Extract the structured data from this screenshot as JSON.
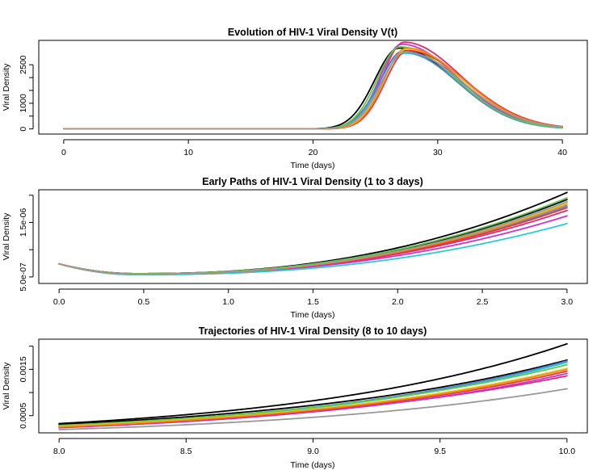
{
  "chart_data": [
    {
      "type": "line",
      "title": "Evolution of HIV-1 Viral Density V(t)",
      "xlabel": "Time (days)",
      "ylabel": "Viral Density",
      "xlim": [
        -2,
        42
      ],
      "ylim": [
        -200,
        3450
      ],
      "x_ticks": [
        0,
        10,
        20,
        30,
        40
      ],
      "x_tick_labels": [
        "0",
        "10",
        "20",
        "30",
        "40"
      ],
      "y_ticks": [
        0,
        1000,
        2500
      ],
      "y_tick_labels": [
        "0",
        "1000",
        "2500"
      ],
      "y_ticks_minor": [
        500,
        1500,
        2000
      ],
      "grid": false,
      "model": "pulse",
      "series": [
        {
          "color": "#000000",
          "values": {
            "peak_t": 27.3,
            "peak_v": 3050,
            "rise": 1.95,
            "decay": 4.6
          }
        },
        {
          "color": "#000000",
          "values": {
            "peak_t": 26.9,
            "peak_v": 3150,
            "rise": 1.95,
            "decay": 4.5
          }
        },
        {
          "color": "#dd2d6f",
          "values": {
            "peak_t": 27.3,
            "peak_v": 3380,
            "rise": 1.75,
            "decay": 4.6
          }
        },
        {
          "color": "#cc33cc",
          "values": {
            "peak_t": 27.1,
            "peak_v": 3300,
            "rise": 1.75,
            "decay": 4.5
          }
        },
        {
          "color": "#2bcbd6",
          "values": {
            "peak_t": 27.4,
            "peak_v": 2950,
            "rise": 1.95,
            "decay": 4.3
          }
        },
        {
          "color": "#4f87d8",
          "values": {
            "peak_t": 27.2,
            "peak_v": 3000,
            "rise": 1.9,
            "decay": 4.4
          }
        },
        {
          "color": "#61c748",
          "values": {
            "peak_t": 27.0,
            "peak_v": 3200,
            "rise": 1.85,
            "decay": 4.5
          }
        },
        {
          "color": "#e8d024",
          "values": {
            "peak_t": 27.5,
            "peak_v": 3100,
            "rise": 1.85,
            "decay": 4.6
          }
        },
        {
          "color": "#e33b3b",
          "values": {
            "peak_t": 27.6,
            "peak_v": 3050,
            "rise": 1.8,
            "decay": 4.7
          }
        },
        {
          "color": "#f28b1a",
          "values": {
            "peak_t": 27.5,
            "peak_v": 3150,
            "rise": 1.8,
            "decay": 4.6
          }
        },
        {
          "color": "#999999",
          "values": {
            "peak_t": 27.4,
            "peak_v": 3000,
            "rise": 1.9,
            "decay": 4.6
          }
        }
      ]
    },
    {
      "type": "line",
      "title": "Early Paths of HIV-1 Viral Density (1 to 3 days)",
      "xlabel": "Time (days)",
      "ylabel": "Viral Density",
      "xlim": [
        -0.12,
        3.12
      ],
      "ylim": [
        3.8e-07,
        2.1e-06
      ],
      "x_ticks": [
        0,
        0.5,
        1,
        1.5,
        2,
        2.5,
        3
      ],
      "x_tick_labels": [
        "0.0",
        "0.5",
        "1.0",
        "1.5",
        "2.0",
        "2.5",
        "3.0"
      ],
      "y_ticks": [
        5e-07,
        1.5e-06
      ],
      "y_tick_labels": [
        "5.0e-07",
        "1.5e-06"
      ],
      "y_ticks_minor": [
        1e-06,
        2e-06
      ],
      "grid": false,
      "model": "dip",
      "series": [
        {
          "color": "#000000",
          "values": {
            "start": 7.4e-07,
            "low": 5.6e-07,
            "low_t": 0.45,
            "end": 2.05e-06
          }
        },
        {
          "color": "#000000",
          "values": {
            "start": 7.4e-07,
            "low": 5.6e-07,
            "low_t": 0.45,
            "end": 1.92e-06
          }
        },
        {
          "color": "#dd2d6f",
          "values": {
            "start": 7.4e-07,
            "low": 5.5e-07,
            "low_t": 0.45,
            "end": 1.72e-06
          }
        },
        {
          "color": "#cc33cc",
          "values": {
            "start": 7.4e-07,
            "low": 5.5e-07,
            "low_t": 0.45,
            "end": 1.62e-06
          }
        },
        {
          "color": "#2bcbd6",
          "values": {
            "start": 7.4e-07,
            "low": 5.4e-07,
            "low_t": 0.45,
            "end": 1.48e-06
          }
        },
        {
          "color": "#4f87d8",
          "values": {
            "start": 7.4e-07,
            "low": 5.5e-07,
            "low_t": 0.45,
            "end": 1.8e-06
          }
        },
        {
          "color": "#61c748",
          "values": {
            "start": 7.4e-07,
            "low": 5.6e-07,
            "low_t": 0.45,
            "end": 1.95e-06
          }
        },
        {
          "color": "#e8d024",
          "values": {
            "start": 7.4e-07,
            "low": 5.5e-07,
            "low_t": 0.45,
            "end": 1.86e-06
          }
        },
        {
          "color": "#e33b3b",
          "values": {
            "start": 7.4e-07,
            "low": 5.5e-07,
            "low_t": 0.45,
            "end": 1.77e-06
          }
        },
        {
          "color": "#f28b1a",
          "values": {
            "start": 7.4e-07,
            "low": 5.5e-07,
            "low_t": 0.45,
            "end": 1.83e-06
          }
        },
        {
          "color": "#999999",
          "values": {
            "start": 7.4e-07,
            "low": 5.5e-07,
            "low_t": 0.45,
            "end": 1.88e-06
          }
        }
      ]
    },
    {
      "type": "line",
      "title": "Trajectories of HIV-1 Viral Density (8 to 10 days)",
      "xlabel": "Time (days)",
      "ylabel": "Viral Density",
      "xlim": [
        7.92,
        10.08
      ],
      "ylim": [
        0.00013,
        0.00215
      ],
      "x_ticks": [
        8,
        8.5,
        9,
        9.5,
        10
      ],
      "x_tick_labels": [
        "8.0",
        "8.5",
        "9.0",
        "9.5",
        "10.0"
      ],
      "y_ticks": [
        0.0005,
        0.0015
      ],
      "y_tick_labels": [
        "0.0005",
        "0.0015"
      ],
      "y_ticks_minor": [
        0.001,
        0.002
      ],
      "grid": false,
      "model": "exp",
      "series": [
        {
          "color": "#000000",
          "values": {
            "start": 0.00033,
            "end": 0.00205
          }
        },
        {
          "color": "#000000",
          "values": {
            "start": 0.00031,
            "end": 0.0017
          }
        },
        {
          "color": "#dd2d6f",
          "values": {
            "start": 0.00026,
            "end": 0.00136
          }
        },
        {
          "color": "#cc33cc",
          "values": {
            "start": 0.00024,
            "end": 0.00141
          }
        },
        {
          "color": "#2bcbd6",
          "values": {
            "start": 0.00027,
            "end": 0.00165
          }
        },
        {
          "color": "#4f87d8",
          "values": {
            "start": 0.00028,
            "end": 0.00168
          }
        },
        {
          "color": "#61c748",
          "values": {
            "start": 0.00029,
            "end": 0.0016
          }
        },
        {
          "color": "#e8d024",
          "values": {
            "start": 0.00027,
            "end": 0.00152
          }
        },
        {
          "color": "#e33b3b",
          "values": {
            "start": 0.00025,
            "end": 0.00146
          }
        },
        {
          "color": "#f28b1a",
          "values": {
            "start": 0.00026,
            "end": 0.0015
          }
        },
        {
          "color": "#999999",
          "values": {
            "start": 0.0002,
            "end": 0.00108
          }
        }
      ]
    }
  ]
}
